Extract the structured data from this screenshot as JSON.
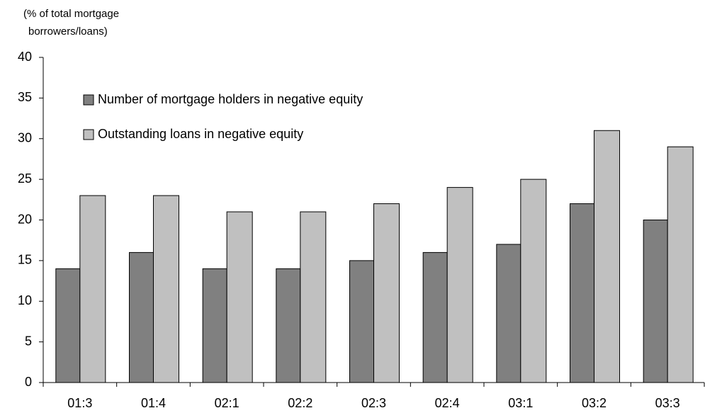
{
  "chart_data": {
    "type": "bar",
    "ylabel": [
      "(% of total mortgage",
      "borrowers/loans)"
    ],
    "categories": [
      "01:3",
      "01:4",
      "02:1",
      "02:2",
      "02:3",
      "02:4",
      "03:1",
      "03:2",
      "03:3"
    ],
    "series": [
      {
        "name": "Number of mortgage holders in negative equity",
        "color": "#808080",
        "values": [
          14,
          16,
          14,
          14,
          15,
          16,
          17,
          22,
          20
        ]
      },
      {
        "name": "Outstanding loans in negative equity",
        "color": "#c0c0c0",
        "values": [
          23,
          23,
          21,
          21,
          22,
          24,
          25,
          31,
          29
        ]
      }
    ],
    "ylim": [
      0,
      40
    ],
    "yticks": [
      0,
      5,
      10,
      15,
      20,
      25,
      30,
      35,
      40
    ],
    "grid": false,
    "legend": "top-left"
  }
}
